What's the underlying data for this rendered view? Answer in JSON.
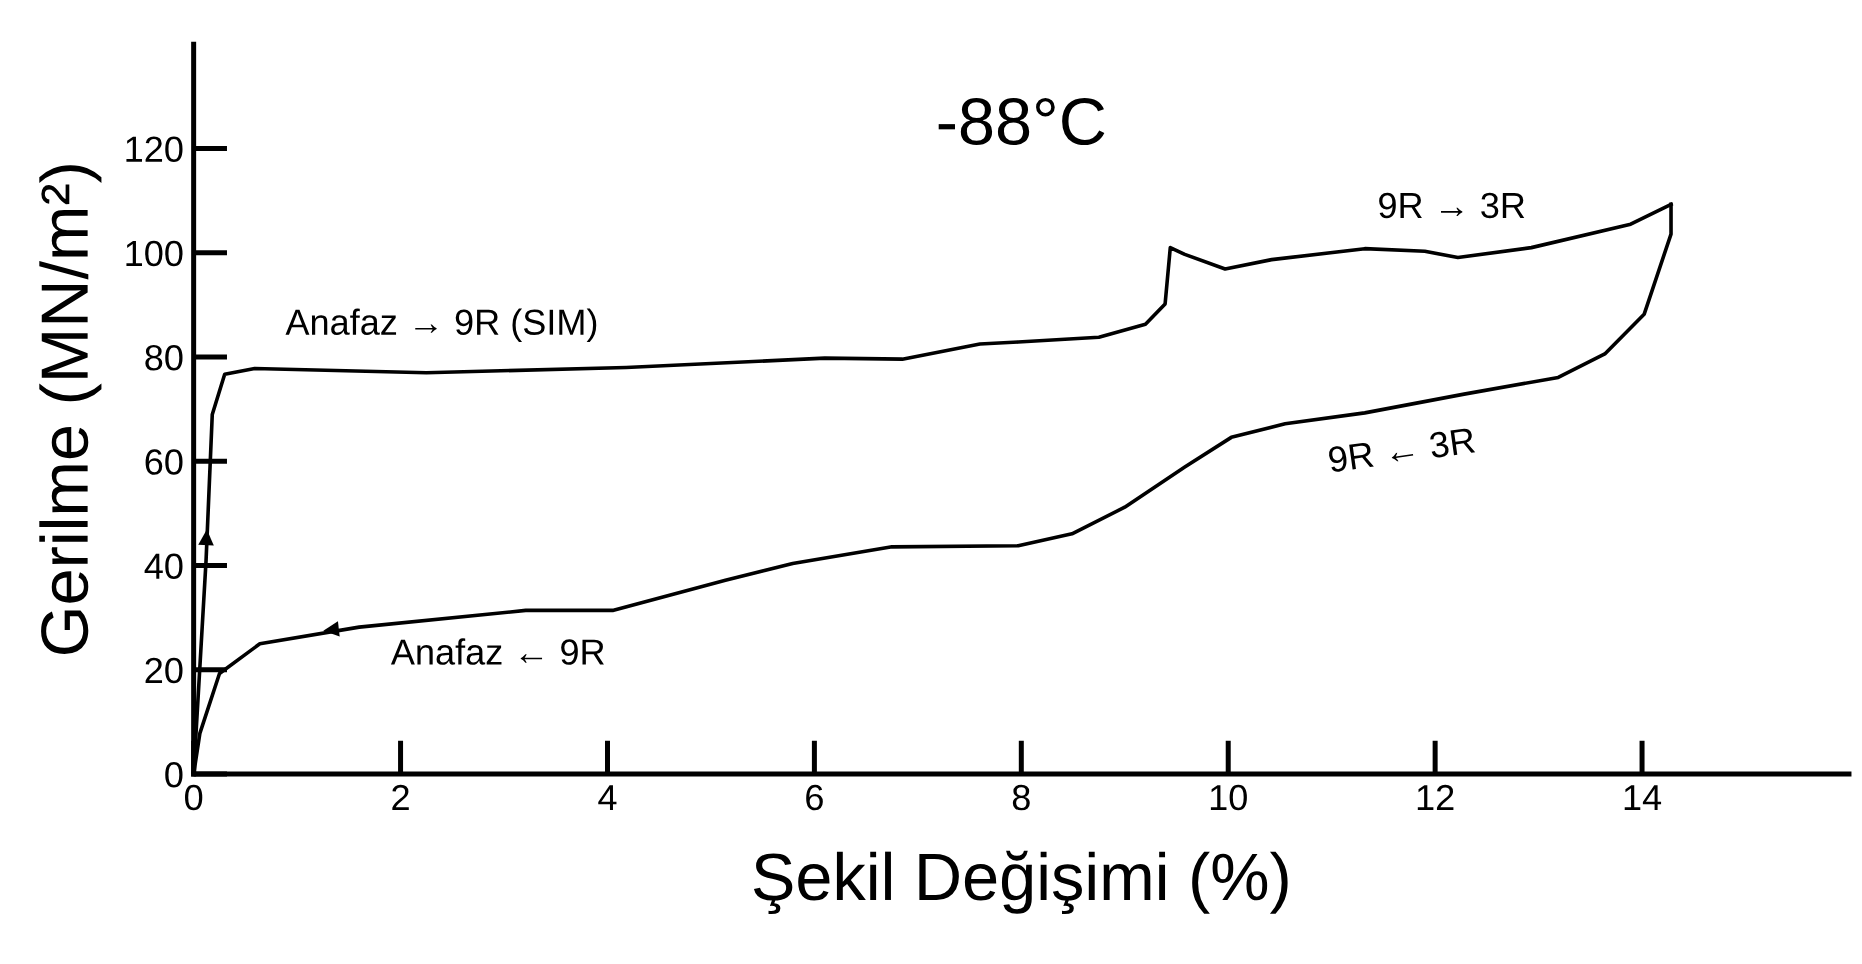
{
  "chart_data": {
    "type": "line",
    "title": "-88°C",
    "xlabel": "Şekil Değişimi (%)",
    "ylabel": "Gerilme (MN/m²)",
    "series": [
      {
        "color": "#000000",
        "x": [
          0,
          0.12,
          0.18,
          0.3,
          0.59,
          2.25,
          4.18,
          6.1,
          6.85,
          7.6,
          7.97,
          8.75,
          9.2,
          9.39,
          9.44,
          9.58,
          9.97,
          10.42,
          11.32,
          11.9,
          12.22,
          12.93,
          13.89,
          14.28
        ],
        "values": [
          0,
          41,
          69,
          76.7,
          77.8,
          77,
          78,
          79.8,
          79.6,
          82.5,
          82.9,
          83.8,
          86.3,
          90.2,
          101,
          99.7,
          96.9,
          98.7,
          100.8,
          100.3,
          99.1,
          101,
          105.5,
          109.3
        ]
      },
      {
        "color": "#000000",
        "x": [
          14.28,
          14.28,
          14.02,
          13.64,
          13.19,
          12.28,
          11.32,
          10.55,
          10.03,
          9.58,
          9.0,
          8.49,
          7.97,
          6.75,
          5.79,
          5.14,
          4.05,
          3.21,
          1.6,
          0.64,
          0.25,
          0.06,
          0
        ],
        "values": [
          109.3,
          103.6,
          88.2,
          80.6,
          76.1,
          72.9,
          69.3,
          67.2,
          64.6,
          58.9,
          51.2,
          46.1,
          43.8,
          43.6,
          40.4,
          37.2,
          31.4,
          31.4,
          28.2,
          25,
          19.3,
          7.8,
          0
        ]
      }
    ],
    "annotations": [
      "Anafaz → 9R (SIM)",
      "Anafaz ← 9R",
      "9R → 3R",
      "9R ← 3R"
    ],
    "xlim": [
      0,
      16
    ],
    "ylim": [
      0,
      140
    ],
    "xticks": [
      0,
      2,
      4,
      6,
      8,
      10,
      12,
      14
    ],
    "yticks": [
      0,
      20,
      40,
      60,
      80,
      100,
      120
    ],
    "grid": false,
    "marker": "none",
    "line_style": "solid"
  }
}
